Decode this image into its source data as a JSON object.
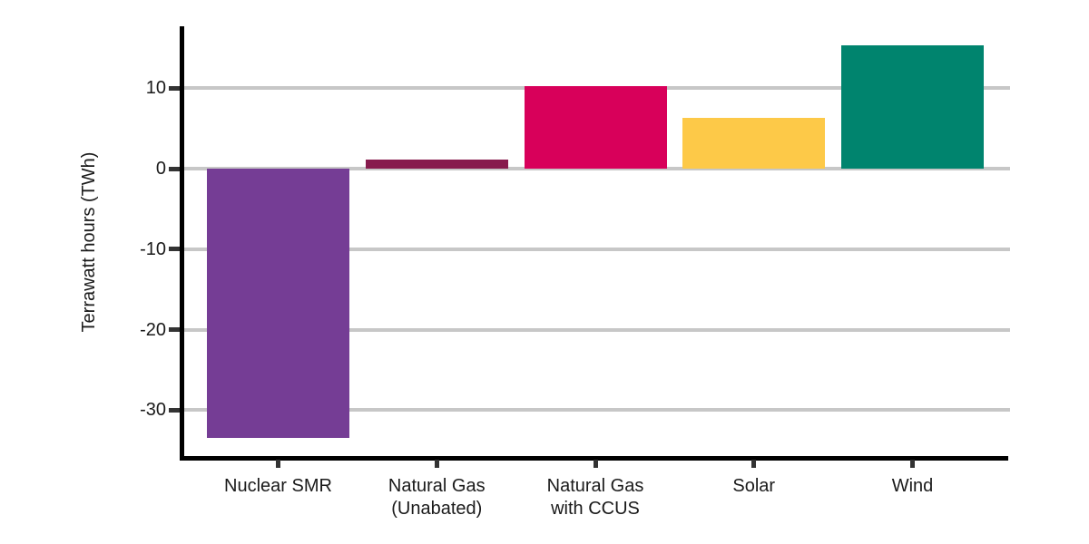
{
  "chart_data": {
    "type": "bar",
    "title": "",
    "xlabel": "",
    "ylabel": "Terrawatt hours (TWh)",
    "categories": [
      "Nuclear SMR",
      "Natural Gas\n(Unabated)",
      "Natural Gas\nwith CCUS",
      "Solar",
      "Wind"
    ],
    "values": [
      -33.5,
      1.1,
      10.3,
      6.3,
      15.3
    ],
    "bar_colors": [
      "#753D95",
      "#871B4D",
      "#D8005A",
      "#FDC948",
      "#00846E"
    ],
    "yticks": [
      {
        "label": "10",
        "value": 10
      },
      {
        "label": "0",
        "value": 0
      },
      {
        "label": "-10",
        "value": -10
      },
      {
        "label": "-20",
        "value": -20
      },
      {
        "label": "-30",
        "value": -30
      }
    ],
    "ylim": [
      -35.9,
      17.7
    ],
    "grid": true,
    "legend": "none",
    "colors": {
      "grid": "#C7C7C7",
      "axis": "#000000",
      "tick": "#333333",
      "text": "#1a1a1a",
      "background": "#ffffff"
    }
  }
}
